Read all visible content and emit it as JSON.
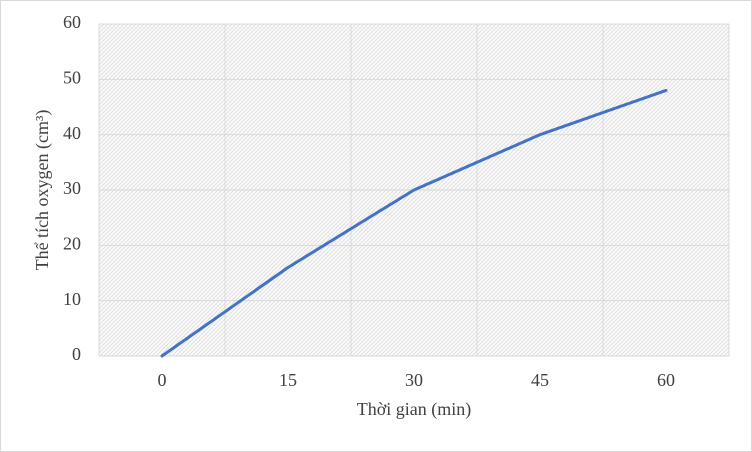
{
  "chart_data": {
    "type": "line",
    "categories": [
      "0",
      "15",
      "30",
      "45",
      "60"
    ],
    "values": [
      0,
      16,
      30,
      40,
      48
    ],
    "color": "#4472c4",
    "ylim": [
      0,
      60
    ],
    "yticks": [
      0,
      10,
      20,
      30,
      40,
      50,
      60
    ],
    "grid": true,
    "xlabel": "Thời gian (min)",
    "ylabel": "Thể tích oxygen (cm³)"
  }
}
